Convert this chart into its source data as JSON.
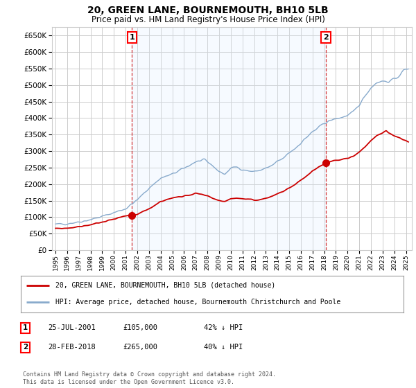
{
  "title": "20, GREEN LANE, BOURNEMOUTH, BH10 5LB",
  "subtitle": "Price paid vs. HM Land Registry's House Price Index (HPI)",
  "ytick_values": [
    0,
    50000,
    100000,
    150000,
    200000,
    250000,
    300000,
    350000,
    400000,
    450000,
    500000,
    550000,
    600000,
    650000
  ],
  "ylim": [
    0,
    675000
  ],
  "xlim_start": 1994.7,
  "xlim_end": 2025.5,
  "background_color": "#ffffff",
  "grid_color": "#cccccc",
  "fill_color": "#ddeeff",
  "red_line_color": "#cc0000",
  "blue_line_color": "#88aacc",
  "marker1_x": 2001.55,
  "marker1_y": 105000,
  "marker1_label": "1",
  "marker2_x": 2018.15,
  "marker2_y": 265000,
  "marker2_label": "2",
  "annotation1_date": "25-JUL-2001",
  "annotation1_price": "£105,000",
  "annotation1_hpi": "42% ↓ HPI",
  "annotation2_date": "28-FEB-2018",
  "annotation2_price": "£265,000",
  "annotation2_hpi": "40% ↓ HPI",
  "legend_label_red": "20, GREEN LANE, BOURNEMOUTH, BH10 5LB (detached house)",
  "legend_label_blue": "HPI: Average price, detached house, Bournemouth Christchurch and Poole",
  "footnote": "Contains HM Land Registry data © Crown copyright and database right 2024.\nThis data is licensed under the Open Government Licence v3.0."
}
